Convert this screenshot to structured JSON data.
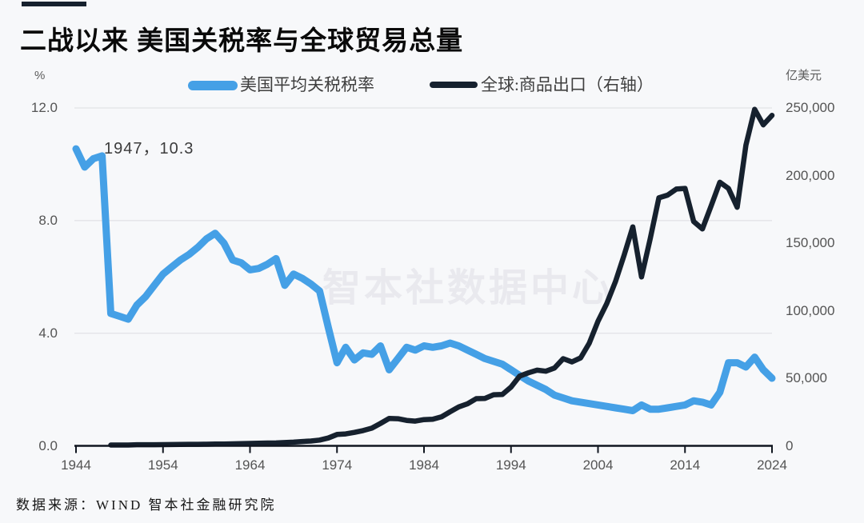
{
  "page": {
    "background": "#f7f8fa",
    "accent_bar_color": "#16212e"
  },
  "header": {
    "title": "二战以来 美国关税率与全球贸易总量"
  },
  "legend": [
    {
      "label": "美国平均关税税率",
      "color": "#45a0e6",
      "shape": "thick-rounded-line"
    },
    {
      "label": "全球:商品出口（右轴）",
      "color": "#16212e",
      "shape": "line"
    }
  ],
  "annotation": {
    "text": "1947，10.3"
  },
  "watermark": {
    "text": "智本社数据中心"
  },
  "footer": {
    "source": "数据来源：WIND 智本社金融研究院"
  },
  "chart_data": {
    "type": "line",
    "title": "二战以来 美国关税率与全球贸易总量",
    "grid": true,
    "legend_position": "top",
    "x_ticks": [
      1944,
      1954,
      1964,
      1974,
      1984,
      1994,
      2004,
      2014,
      2024
    ],
    "x_range": [
      1944,
      2024
    ],
    "left_axis": {
      "unit": "%",
      "min": 0,
      "max": 12,
      "ticks": [
        0,
        4,
        8,
        12
      ],
      "tick_labels": [
        "0.0",
        "4.0",
        "8.0",
        "12.0"
      ]
    },
    "right_axis": {
      "unit": "亿美元",
      "min": 0,
      "max": 250000,
      "ticks": [
        0,
        50000,
        100000,
        150000,
        200000,
        250000
      ],
      "tick_labels": [
        "0",
        "50,000",
        "100,000",
        "150,000",
        "200,000",
        "250,000"
      ]
    },
    "series": [
      {
        "name": "美国平均关税税率",
        "axis": "left",
        "color": "#45a0e6",
        "stroke_width": 9,
        "start_year": 1944,
        "values": [
          10.55,
          9.9,
          10.2,
          10.3,
          4.7,
          4.6,
          4.5,
          5.0,
          5.3,
          5.7,
          6.1,
          6.35,
          6.6,
          6.8,
          7.05,
          7.35,
          7.55,
          7.2,
          6.6,
          6.5,
          6.25,
          6.3,
          6.45,
          6.65,
          5.7,
          6.1,
          5.95,
          5.75,
          5.5,
          4.2,
          2.95,
          3.5,
          3.05,
          3.3,
          3.25,
          3.55,
          2.7,
          3.1,
          3.5,
          3.4,
          3.55,
          3.5,
          3.55,
          3.65,
          3.55,
          3.4,
          3.25,
          3.1,
          3.0,
          2.9,
          2.7,
          2.5,
          2.3,
          2.15,
          2.0,
          1.8,
          1.7,
          1.6,
          1.55,
          1.5,
          1.45,
          1.4,
          1.35,
          1.3,
          1.25,
          1.45,
          1.3,
          1.3,
          1.35,
          1.4,
          1.45,
          1.6,
          1.55,
          1.45,
          1.9,
          2.95,
          2.95,
          2.8,
          3.15,
          2.7,
          2.4
        ]
      },
      {
        "name": "全球:商品出口（右轴）",
        "axis": "right",
        "color": "#16212e",
        "stroke_width": 6.5,
        "start_year": 1948,
        "values": [
          600,
          590,
          620,
          820,
          800,
          820,
          860,
          950,
          1050,
          1150,
          1100,
          1200,
          1300,
          1370,
          1470,
          1600,
          1770,
          1900,
          2050,
          2150,
          2400,
          2750,
          3200,
          3550,
          4250,
          5800,
          8400,
          8800,
          9950,
          11300,
          13050,
          16550,
          20300,
          20050,
          18800,
          18300,
          19400,
          19650,
          21400,
          25200,
          28800,
          31100,
          34900,
          35100,
          37800,
          38000,
          43500,
          51600,
          54000,
          56000,
          55200,
          57600,
          64500,
          62100,
          65100,
          76000,
          92200,
          105200,
          121500,
          141000,
          162000,
          125000,
          153300,
          183500,
          185500,
          190000,
          190500,
          166000,
          160500,
          177500,
          195000,
          190500,
          176500,
          222500,
          249000,
          237500,
          244500
        ]
      }
    ],
    "annotation": {
      "year": 1947,
      "value": 10.3,
      "text": "1947，10.3"
    }
  }
}
